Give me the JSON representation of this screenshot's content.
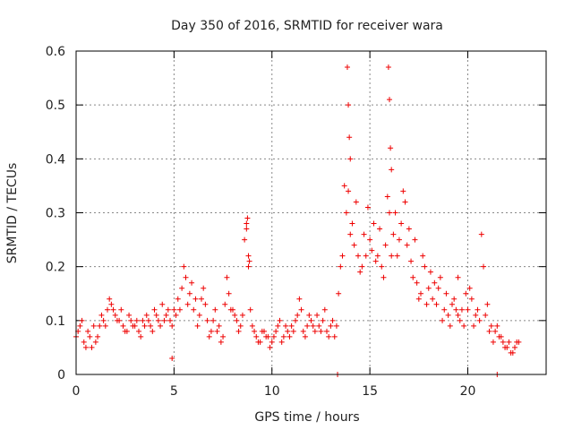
{
  "chart_data": {
    "type": "scatter",
    "title": "Day 350 of 2016, SRMTID for receiver wara",
    "xlabel": "GPS time / hours",
    "ylabel": "SRMTID / TECUs",
    "xlim": [
      0,
      24
    ],
    "ylim": [
      0,
      0.6
    ],
    "xticks": [
      0,
      5,
      10,
      15,
      20
    ],
    "yticks": [
      0,
      0.1,
      0.2,
      0.3,
      0.4,
      0.5,
      0.6
    ],
    "xtick_labels": [
      "0",
      "5",
      "10",
      "15",
      "20"
    ],
    "ytick_labels": [
      "0",
      "0.1",
      "0.2",
      "0.3",
      "0.4",
      "0.5",
      "0.6"
    ],
    "grid": true,
    "marker": "+",
    "color": "#ee0000",
    "series": [
      {
        "name": "SRMTID",
        "x": [
          0.0,
          0.2,
          0.4,
          0.6,
          0.8,
          1.0,
          1.2,
          1.4,
          1.6,
          1.8,
          2.0,
          2.2,
          2.4,
          2.6,
          2.8,
          3.0,
          3.2,
          3.4,
          3.6,
          3.8,
          4.0,
          4.2,
          4.4,
          4.6,
          4.8,
          5.0,
          5.2,
          5.4,
          5.6,
          5.8,
          6.0,
          6.2,
          6.4,
          6.6,
          6.8,
          7.0,
          7.2,
          7.4,
          7.6,
          7.8,
          8.0,
          8.2,
          8.4,
          8.6,
          8.8,
          9.0,
          9.2,
          9.4,
          9.6,
          9.8,
          10.0,
          10.2,
          10.4,
          10.6,
          10.8,
          11.0,
          11.2,
          11.4,
          11.6,
          11.8,
          12.0,
          12.2,
          12.4,
          12.6,
          12.8,
          13.0,
          13.2,
          13.4,
          13.6,
          13.8,
          14.0,
          14.2,
          14.4,
          14.6,
          14.8,
          15.0,
          15.2,
          15.4,
          15.6,
          15.8,
          16.0,
          16.2,
          16.4,
          16.6,
          16.8,
          17.0,
          17.2,
          17.4,
          17.6,
          17.8,
          18.0,
          18.2,
          18.4,
          18.6,
          18.8,
          19.0,
          19.2,
          19.4,
          19.6,
          19.8,
          20.0,
          20.2,
          20.4,
          20.6,
          20.8,
          21.0,
          21.2,
          21.4,
          21.6,
          21.8,
          22.0,
          22.2,
          22.4,
          22.6,
          0.1,
          0.3,
          0.5,
          0.7,
          0.9,
          1.1,
          1.3,
          1.5,
          1.7,
          1.9,
          2.1,
          2.3,
          2.5,
          2.7,
          2.9,
          3.1,
          3.3,
          3.5,
          3.7,
          3.9,
          4.1,
          4.3,
          4.5,
          4.7,
          4.9,
          5.1,
          5.3,
          5.5,
          5.7,
          5.9,
          6.1,
          6.3,
          6.5,
          6.7,
          6.9,
          7.1,
          7.3,
          7.5,
          7.7,
          7.9,
          8.1,
          8.3,
          8.5,
          8.7,
          8.9,
          9.1,
          9.3,
          9.5,
          9.7,
          9.9,
          10.1,
          10.3,
          10.5,
          10.7,
          10.9,
          11.1,
          11.3,
          11.5,
          11.7,
          11.9,
          12.1,
          12.3,
          12.5,
          12.7,
          12.9,
          13.1,
          13.3,
          13.5,
          13.7,
          13.9,
          14.1,
          14.3,
          14.5,
          14.7,
          14.9,
          15.1,
          15.3,
          15.5,
          15.7,
          15.9,
          16.1,
          16.3,
          16.5,
          16.7,
          16.9,
          17.1,
          17.3,
          17.5,
          17.7,
          17.9,
          18.1,
          18.3,
          18.5,
          18.7,
          18.9,
          19.1,
          19.3,
          19.5,
          19.7,
          19.9,
          20.1,
          20.3,
          20.5,
          20.7,
          20.9,
          21.1,
          21.3,
          21.5,
          21.7,
          21.9,
          22.1,
          22.3,
          22.5,
          8.7,
          8.75,
          8.8,
          8.85,
          13.85,
          13.9,
          13.95,
          14.0,
          15.95,
          16.0,
          16.05,
          16.1,
          13.35,
          21.5,
          4.9,
          19.5
        ],
        "y": [
          0.07,
          0.09,
          0.06,
          0.08,
          0.05,
          0.06,
          0.09,
          0.1,
          0.12,
          0.13,
          0.11,
          0.1,
          0.09,
          0.08,
          0.1,
          0.09,
          0.08,
          0.1,
          0.11,
          0.09,
          0.12,
          0.1,
          0.13,
          0.11,
          0.1,
          0.12,
          0.14,
          0.16,
          0.18,
          0.15,
          0.12,
          0.09,
          0.14,
          0.13,
          0.07,
          0.1,
          0.08,
          0.06,
          0.13,
          0.15,
          0.12,
          0.1,
          0.09,
          0.25,
          0.2,
          0.09,
          0.07,
          0.06,
          0.08,
          0.07,
          0.06,
          0.08,
          0.1,
          0.07,
          0.08,
          0.09,
          0.1,
          0.14,
          0.08,
          0.09,
          0.1,
          0.08,
          0.09,
          0.1,
          0.08,
          0.09,
          0.07,
          0.15,
          0.22,
          0.3,
          0.26,
          0.24,
          0.22,
          0.2,
          0.22,
          0.25,
          0.28,
          0.22,
          0.2,
          0.24,
          0.3,
          0.26,
          0.22,
          0.28,
          0.32,
          0.27,
          0.18,
          0.17,
          0.15,
          0.2,
          0.16,
          0.14,
          0.13,
          0.18,
          0.12,
          0.11,
          0.13,
          0.12,
          0.1,
          0.09,
          0.12,
          0.14,
          0.11,
          0.1,
          0.2,
          0.13,
          0.09,
          0.08,
          0.07,
          0.06,
          0.05,
          0.04,
          0.05,
          0.06,
          0.08,
          0.1,
          0.05,
          0.07,
          0.09,
          0.07,
          0.11,
          0.09,
          0.14,
          0.12,
          0.1,
          0.12,
          0.08,
          0.11,
          0.09,
          0.1,
          0.07,
          0.09,
          0.1,
          0.08,
          0.11,
          0.09,
          0.1,
          0.12,
          0.09,
          0.11,
          0.12,
          0.2,
          0.13,
          0.17,
          0.14,
          0.11,
          0.16,
          0.1,
          0.08,
          0.12,
          0.09,
          0.07,
          0.18,
          0.12,
          0.11,
          0.08,
          0.11,
          0.28,
          0.12,
          0.08,
          0.06,
          0.08,
          0.07,
          0.05,
          0.07,
          0.09,
          0.06,
          0.09,
          0.07,
          0.08,
          0.11,
          0.12,
          0.07,
          0.11,
          0.09,
          0.11,
          0.08,
          0.12,
          0.07,
          0.1,
          0.09,
          0.2,
          0.35,
          0.34,
          0.28,
          0.32,
          0.19,
          0.26,
          0.31,
          0.23,
          0.21,
          0.27,
          0.18,
          0.33,
          0.22,
          0.3,
          0.25,
          0.34,
          0.24,
          0.21,
          0.25,
          0.14,
          0.22,
          0.13,
          0.19,
          0.17,
          0.16,
          0.1,
          0.15,
          0.09,
          0.14,
          0.11,
          0.12,
          0.15,
          0.16,
          0.09,
          0.12,
          0.26,
          0.11,
          0.08,
          0.06,
          0.09,
          0.07,
          0.05,
          0.06,
          0.04,
          0.06,
          0.27,
          0.29,
          0.22,
          0.21,
          0.57,
          0.5,
          0.44,
          0.4,
          0.57,
          0.51,
          0.42,
          0.38,
          0.0,
          0.0,
          0.03,
          0.18
        ]
      }
    ]
  }
}
